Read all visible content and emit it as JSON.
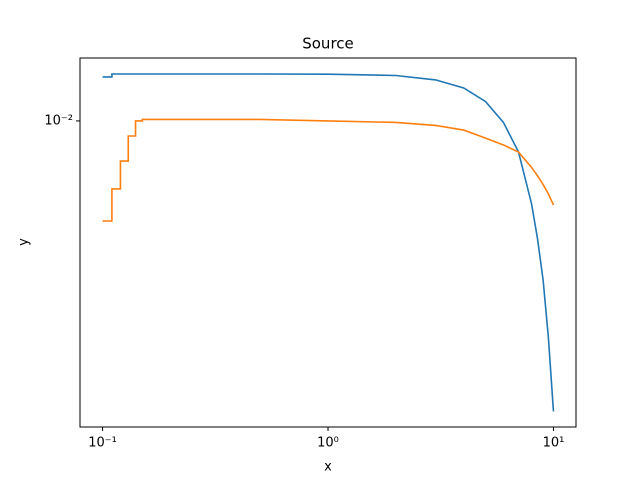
{
  "chart_data": {
    "type": "line",
    "title": "Source",
    "x_label": "x",
    "y_label": "y",
    "x": [
      0.1,
      0.11,
      0.11,
      0.12,
      0.12,
      0.13,
      0.13,
      0.14,
      0.14,
      0.15,
      0.15,
      0.3,
      0.5,
      1,
      2,
      3,
      4,
      5,
      6,
      7,
      8,
      8.5,
      9,
      9.5,
      10
    ],
    "series": [
      {
        "color": "#1f77b4",
        "values": [
          0.01347,
          0.01347,
          0.01374,
          0.01374,
          0.01374,
          0.01374,
          0.01374,
          0.01374,
          0.01374,
          0.01374,
          0.01374,
          0.01374,
          0.01374,
          0.01372,
          0.0136,
          0.0132,
          0.0125,
          0.0114,
          0.0099,
          0.0081,
          0.0057,
          0.0045,
          0.0034,
          0.0023,
          0.0014
        ]
      },
      {
        "color": "#ff7f0e",
        "values": [
          0.00508,
          0.00508,
          0.00631,
          0.00631,
          0.00762,
          0.00762,
          0.00903,
          0.00903,
          0.01,
          0.01,
          0.0101,
          0.0101,
          0.0101,
          0.01,
          0.0099,
          0.0097,
          0.0094,
          0.0089,
          0.0085,
          0.0081,
          0.0073,
          0.0069,
          0.0065,
          0.0061,
          0.00566
        ]
      }
    ],
    "xscale": "log",
    "yscale": "log",
    "xlim": [
      0.0794,
      12.59
    ],
    "ylim": [
      0.00126,
      0.01531
    ],
    "xticks": [
      {
        "value": 0.1,
        "label": "10⁻¹"
      },
      {
        "value": 1,
        "label": "10⁰"
      },
      {
        "value": 10,
        "label": "10¹"
      }
    ],
    "yticks": [
      {
        "value": 0.01,
        "label": "10⁻²"
      }
    ]
  }
}
